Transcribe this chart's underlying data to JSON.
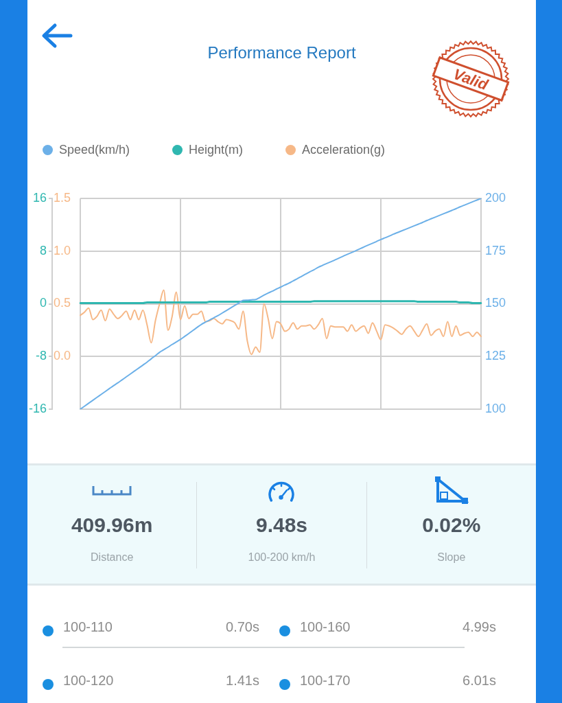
{
  "chart_data": [
    {
      "type": "line",
      "title": "Performance Report",
      "annotations": [
        "Valid"
      ],
      "categories": [
        null,
        null,
        null,
        null,
        null,
        null,
        null,
        null,
        null,
        null,
        null,
        null,
        null,
        null,
        null,
        null,
        null,
        null,
        null,
        null,
        null,
        null,
        null,
        null,
        null,
        null,
        null,
        null,
        null,
        null,
        null,
        null,
        null,
        null,
        null,
        null,
        null,
        null,
        null,
        null,
        null,
        null,
        null,
        null,
        null,
        null,
        null,
        null,
        null,
        null,
        null,
        null,
        null,
        null,
        null,
        null,
        null,
        null,
        null,
        null,
        null,
        null,
        null,
        null,
        null,
        null,
        null,
        null,
        null,
        null,
        null,
        null,
        null,
        null,
        null,
        null,
        null,
        null,
        null,
        null,
        null,
        null,
        null,
        null,
        null,
        null,
        null,
        null,
        null,
        null,
        null,
        null,
        null,
        null,
        null,
        null,
        null
      ],
      "series": [
        {
          "name": "Speed(km/h)",
          "color": "#6cb0e8",
          "axis": "y2",
          "values": [
            100,
            101.4,
            102.8,
            104.2,
            105.6,
            107.0,
            108.4,
            109.8,
            111.2,
            112.5,
            113.9,
            115.3,
            116.7,
            118.1,
            119.5,
            120.9,
            122.3,
            123.9,
            125.4,
            127.0,
            128.2,
            129.4,
            130.7,
            131.9,
            133.1,
            134.5,
            135.9,
            137.4,
            138.8,
            140.2,
            141.3,
            142.3,
            143.4,
            144.4,
            145.6,
            146.8,
            148.0,
            149.2,
            150.4,
            151.6,
            151.7,
            151.9,
            152.0,
            153.0,
            154.1,
            155.1,
            156.0,
            157.0,
            157.9,
            158.9,
            159.8,
            160.9,
            161.9,
            163.0,
            164.1,
            165.2,
            166.2,
            167.3,
            168.2,
            169.1,
            169.9,
            170.8,
            171.7,
            172.6,
            173.5,
            174.3,
            175.2,
            176.1,
            177.0,
            177.9,
            178.7,
            179.6,
            180.5,
            181.3,
            182.1,
            183.0,
            183.8,
            184.6,
            185.4,
            186.2,
            187.0,
            187.8,
            188.6,
            189.5,
            190.3,
            191.1,
            191.9,
            192.7,
            193.5,
            194.3,
            195.1,
            196.0,
            196.8,
            197.6,
            198.4,
            199.2,
            200
          ]
        },
        {
          "name": "Height(m)",
          "color": "#2fb7b0",
          "values": [
            0.1,
            0.1,
            0.1,
            0.1,
            0.1,
            0.1,
            0.1,
            0.1,
            0.1,
            0.1,
            0.1,
            0.1,
            0.1,
            0.1,
            0.1,
            0.1,
            0.2,
            0.2,
            0.2,
            0.2,
            0.2,
            0.2,
            0.2,
            0.2,
            0.2,
            0.2,
            0.2,
            0.2,
            0.2,
            0.2,
            0.2,
            0.3,
            0.3,
            0.3,
            0.3,
            0.3,
            0.3,
            0.3,
            0.3,
            0.3,
            0.3,
            0.3,
            0.3,
            0.3,
            0.3,
            0.3,
            0.3,
            0.3,
            0.3,
            0.3,
            0.3,
            0.3,
            0.3,
            0.3,
            0.3,
            0.3,
            0.4,
            0.4,
            0.4,
            0.4,
            0.4,
            0.4,
            0.4,
            0.4,
            0.4,
            0.4,
            0.4,
            0.4,
            0.4,
            0.4,
            0.4,
            0.4,
            0.4,
            0.4,
            0.4,
            0.4,
            0.4,
            0.4,
            0.4,
            0.4,
            0.4,
            0.3,
            0.3,
            0.3,
            0.3,
            0.3,
            0.3,
            0.3,
            0.3,
            0.3,
            0.3,
            0.2,
            0.2,
            0.2,
            0.1,
            0.1,
            0.1
          ]
        },
        {
          "name": "Acceleration(g)",
          "color": "#f6b887",
          "axis": "y3",
          "values": [
            0.39,
            0.42,
            0.46,
            0.35,
            0.38,
            0.44,
            0.34,
            0.45,
            0.4,
            0.36,
            0.39,
            0.43,
            0.35,
            0.44,
            0.35,
            0.44,
            0.3,
            0.13,
            0.34,
            0.5,
            0.63,
            0.25,
            0.38,
            0.61,
            0.35,
            0.48,
            0.36,
            0.4,
            0.4,
            0.43,
            0.33,
            0.34,
            0.36,
            0.33,
            0.31,
            0.35,
            0.34,
            0.32,
            0.26,
            0.43,
            0.15,
            0.02,
            0.09,
            0.04,
            0.5,
            0.36,
            0.17,
            0.33,
            0.31,
            0.24,
            0.26,
            0.32,
            0.26,
            0.29,
            0.29,
            0.3,
            0.26,
            0.3,
            0.36,
            0.17,
            0.29,
            0.28,
            0.28,
            0.28,
            0.24,
            0.3,
            0.24,
            0.27,
            0.29,
            0.22,
            0.32,
            0.24,
            0.16,
            0.3,
            0.29,
            0.27,
            0.24,
            0.21,
            0.26,
            0.29,
            0.24,
            0.19,
            0.25,
            0.31,
            0.2,
            0.24,
            0.26,
            0.19,
            0.33,
            0.19,
            0.29,
            0.2,
            0.22,
            0.23,
            0.19,
            0.23,
            0.19
          ]
        }
      ],
      "ylim": [
        -16,
        16
      ],
      "yticks": [
        -16,
        -8,
        0,
        8,
        16
      ],
      "y2lim": [
        100,
        200
      ],
      "y2ticks": [
        100,
        125,
        150,
        175,
        200
      ],
      "y3lim": [
        -0.5,
        1.5
      ],
      "y3ticks": [
        {
          "value": -0.5,
          "label": null
        },
        {
          "value": 0,
          "label": "0.0"
        },
        0.5,
        {
          "value": 1,
          "label": "1.0"
        },
        1.5
      ],
      "grid": true,
      "legend": "top left",
      "tick_labels": "y",
      "marker": "none"
    },
    {
      "type": "other",
      "annotations": [
        "409.96m",
        "Distance",
        "9.48s",
        "100-200 km/h",
        "0.02%",
        "Slope"
      ]
    },
    {
      "type": "other",
      "annotations": [
        "100-110",
        "0.70s",
        "100-160",
        "4.99s",
        "100-120",
        "1.41s",
        "100-170",
        "6.01s"
      ]
    }
  ]
}
